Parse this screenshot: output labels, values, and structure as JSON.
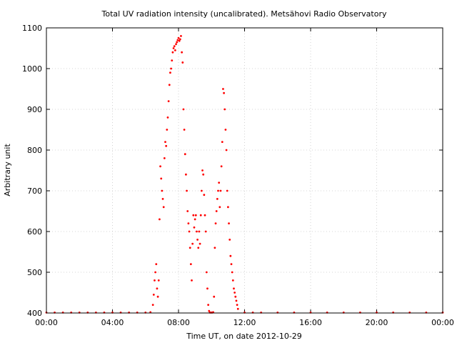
{
  "chart_data": {
    "type": "scatter",
    "title": "Total UV radiation intensity (uncalibrated). Metsähovi Radio Observatory",
    "xlabel": "Time UT, on date 2012-10-29",
    "ylabel": "Arbitrary unit",
    "x_unit": "hours UT",
    "xlim": [
      0,
      24
    ],
    "ylim": [
      400,
      1100
    ],
    "grid": true,
    "marker_color": "#ff0000",
    "x_ticks": [
      {
        "value": 0,
        "label": "00:00"
      },
      {
        "value": 4,
        "label": "04:00"
      },
      {
        "value": 8,
        "label": "08:00"
      },
      {
        "value": 12,
        "label": "12:00"
      },
      {
        "value": 16,
        "label": "16:00"
      },
      {
        "value": 20,
        "label": "20:00"
      },
      {
        "value": 24,
        "label": "00:00"
      }
    ],
    "y_ticks": [
      {
        "value": 400,
        "label": "400"
      },
      {
        "value": 500,
        "label": "500"
      },
      {
        "value": 600,
        "label": "600"
      },
      {
        "value": 700,
        "label": "700"
      },
      {
        "value": 800,
        "label": "800"
      },
      {
        "value": 900,
        "label": "900"
      },
      {
        "value": 1000,
        "label": "1000"
      },
      {
        "value": 1100,
        "label": "1100"
      }
    ],
    "series": [
      {
        "x": [
          0.0,
          0.5,
          1.0,
          1.5,
          2.0,
          2.5,
          3.0,
          3.5,
          4.0,
          4.5,
          5.0,
          5.5,
          6.0,
          6.3,
          6.45,
          6.5,
          6.55,
          6.6,
          6.65,
          6.7,
          6.75,
          6.8,
          6.85,
          6.9,
          6.95,
          7.0,
          7.05,
          7.1,
          7.15,
          7.2,
          7.25,
          7.3,
          7.35,
          7.4,
          7.45,
          7.5,
          7.55,
          7.6,
          7.65,
          7.7,
          7.75,
          7.8,
          7.85,
          7.9,
          7.95,
          8.0,
          8.05,
          8.1,
          8.15,
          8.2,
          8.25,
          8.3,
          8.35,
          8.4,
          8.45,
          8.5,
          8.55,
          8.6,
          8.65,
          8.7,
          8.75,
          8.8,
          8.85,
          8.9,
          8.95,
          9.0,
          9.05,
          9.1,
          9.15,
          9.2,
          9.25,
          9.3,
          9.35,
          9.4,
          9.45,
          9.5,
          9.55,
          9.6,
          9.65,
          9.7,
          9.75,
          9.8,
          9.85,
          9.9,
          9.95,
          10.0,
          10.05,
          10.1,
          10.15,
          10.2,
          10.25,
          10.3,
          10.35,
          10.4,
          10.45,
          10.5,
          10.55,
          10.6,
          10.65,
          10.7,
          10.75,
          10.8,
          10.85,
          10.9,
          10.95,
          11.0,
          11.05,
          11.1,
          11.15,
          11.2,
          11.25,
          11.3,
          11.35,
          11.4,
          11.45,
          11.5,
          11.55,
          11.6,
          12.0,
          12.5,
          13.0,
          14.0,
          15.0,
          16.0,
          17.0,
          18.0,
          19.0,
          20.0,
          21.0,
          22.0,
          23.0,
          24.0
        ],
        "y": [
          401,
          401,
          401,
          401,
          401,
          401,
          401,
          401,
          401,
          401,
          401,
          401,
          401,
          402,
          420,
          445,
          480,
          500,
          520,
          460,
          440,
          480,
          630,
          760,
          730,
          700,
          680,
          660,
          780,
          820,
          810,
          850,
          880,
          920,
          960,
          990,
          1000,
          1020,
          1040,
          1050,
          1055,
          1045,
          1060,
          1065,
          1070,
          1075,
          1068,
          1072,
          1080,
          1040,
          1015,
          900,
          850,
          790,
          740,
          700,
          650,
          620,
          600,
          560,
          520,
          480,
          570,
          640,
          610,
          630,
          640,
          600,
          580,
          560,
          600,
          570,
          640,
          700,
          750,
          740,
          690,
          640,
          600,
          500,
          460,
          420,
          405,
          401,
          401,
          401,
          401,
          402,
          440,
          560,
          620,
          650,
          680,
          700,
          720,
          660,
          700,
          760,
          820,
          950,
          940,
          900,
          850,
          800,
          700,
          660,
          620,
          580,
          540,
          520,
          500,
          480,
          460,
          450,
          440,
          430,
          420,
          410,
          401,
          401,
          401,
          401,
          401,
          401,
          401,
          401,
          401,
          401,
          401,
          401,
          401,
          401
        ]
      }
    ]
  }
}
